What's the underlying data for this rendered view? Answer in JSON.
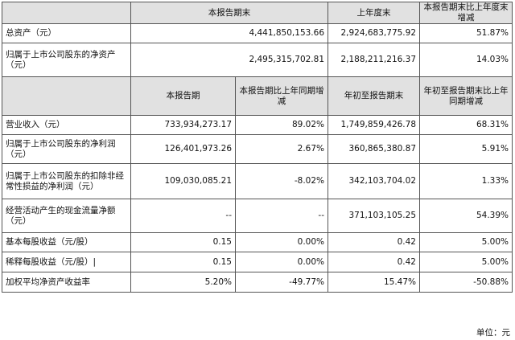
{
  "top_header": [
    "本报告期末",
    "上年度末",
    "本报告期末比上年度末增减"
  ],
  "top_rows": [
    {
      "label": "总资产（元）",
      "values": [
        "4,441,850,153.66",
        "2,924,683,775.92",
        "51.87%"
      ]
    },
    {
      "label": "归属于上市公司股东的净资产（元）",
      "values": [
        "2,495,315,702.81",
        "2,188,211,216.37",
        "14.03%"
      ]
    }
  ],
  "mid_header": [
    "本报告期",
    "本报告期比上年同期增减",
    "年初至报告期末",
    "年初至报告期末比上年同期增减"
  ],
  "mid_rows": [
    {
      "label": "营业收入（元）",
      "values": [
        "733,934,273.17",
        "89.02%",
        "1,749,859,426.78",
        "68.31%"
      ]
    },
    {
      "label": "归属于上市公司股东的净利润（元）",
      "values": [
        "126,401,973.26",
        "2.67%",
        "360,865,380.87",
        "5.91%"
      ]
    },
    {
      "label": "归属于上市公司股东的扣除非经常性损益的净利润（元）",
      "values": [
        "109,030,085.21",
        "-8.02%",
        "342,103,704.02",
        "1.33%"
      ]
    },
    {
      "label": "经营活动产生的现金流量净额（元）",
      "values": [
        "--",
        "--",
        "371,103,105.25",
        "54.39%"
      ]
    },
    {
      "label": "基本每股收益（元/股）",
      "values": [
        "0.15",
        "0.00%",
        "0.42",
        "5.00%"
      ]
    },
    {
      "label": "稀释每股收益（元/股）|",
      "values": [
        "0.15",
        "0.00%",
        "0.42",
        "5.00%"
      ]
    },
    {
      "label": "加权平均净资产收益率",
      "values": [
        "5.20%",
        "-49.77%",
        "15.47%",
        "-50.88%"
      ]
    }
  ],
  "unit_note": "单位：元"
}
